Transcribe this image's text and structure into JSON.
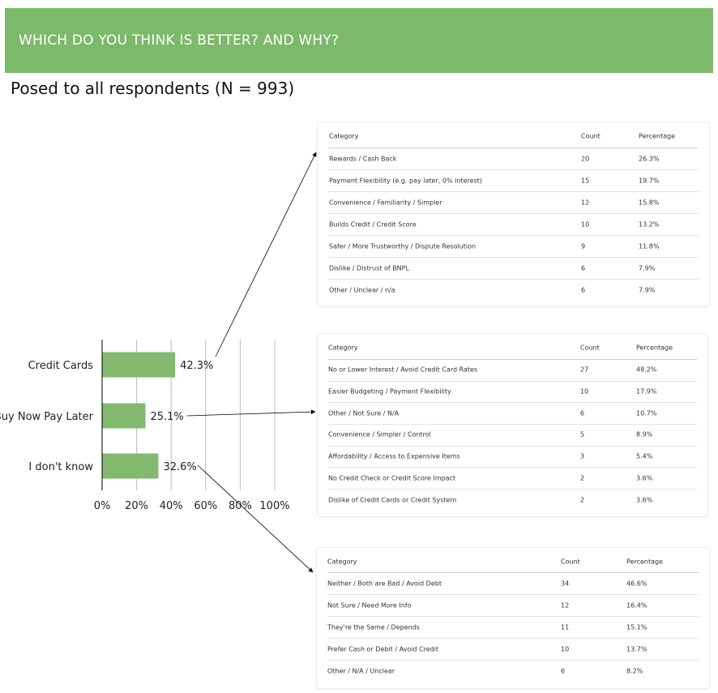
{
  "banner": {
    "title": "WHICH DO YOU THINK IS BETTER? AND WHY?"
  },
  "subtitle": "Posed to all respondents (N = 993)",
  "colors": {
    "banner": "#7db96a",
    "bar": "#82b96e",
    "gridline": "#bbbbbb"
  },
  "chart_data": {
    "type": "bar",
    "orientation": "horizontal",
    "categories": [
      "Credit Cards",
      "Buy Now Pay Later",
      "I don't know"
    ],
    "values": [
      42.3,
      25.1,
      32.6
    ],
    "value_labels": [
      "42.3%",
      "25.1%",
      "32.6%"
    ],
    "x_ticks": [
      "0%",
      "20%",
      "40%",
      "60%",
      "80%",
      "100%"
    ],
    "xlim": [
      0,
      100
    ],
    "grid": true
  },
  "tables": [
    {
      "headers": [
        "Category",
        "Count",
        "Percentage"
      ],
      "rows": [
        [
          "Rewards / Cash Back",
          "20",
          "26.3%"
        ],
        [
          "Payment Flexibility (e.g. pay later, 0% interest)",
          "15",
          "19.7%"
        ],
        [
          "Convenience / Familiarity / Simpler",
          "12",
          "15.8%"
        ],
        [
          "Builds Credit / Credit Score",
          "10",
          "13.2%"
        ],
        [
          "Safer / More Trustworthy / Dispute Resolution",
          "9",
          "11.8%"
        ],
        [
          "Dislike / Distrust of BNPL",
          "6",
          "7.9%"
        ],
        [
          "Other / Unclear / n/a",
          "6",
          "7.9%"
        ]
      ]
    },
    {
      "headers": [
        "Category",
        "Count",
        "Percentage"
      ],
      "rows": [
        [
          "No or Lower Interest / Avoid Credit Card Rates",
          "27",
          "48.2%"
        ],
        [
          "Easier Budgeting / Payment Flexibility",
          "10",
          "17.9%"
        ],
        [
          "Other / Not Sure / N/A",
          "6",
          "10.7%"
        ],
        [
          "Convenience / Simpler / Control",
          "5",
          "8.9%"
        ],
        [
          "Affordability / Access to Expensive Items",
          "3",
          "5.4%"
        ],
        [
          "No Credit Check or Credit Score Impact",
          "2",
          "3.6%"
        ],
        [
          "Dislike of Credit Cards or Credit System",
          "2",
          "3.6%"
        ]
      ]
    },
    {
      "headers": [
        "Category",
        "Count",
        "Percentage"
      ],
      "rows": [
        [
          "Neither / Both are Bad / Avoid Debt",
          "34",
          "46.6%"
        ],
        [
          "Not Sure / Need More Info",
          "12",
          "16.4%"
        ],
        [
          "They're the Same / Depends",
          "11",
          "15.1%"
        ],
        [
          "Prefer Cash or Debit / Avoid Credit",
          "10",
          "13.7%"
        ],
        [
          "Other / N/A / Unclear",
          "6",
          "8.2%"
        ]
      ]
    }
  ]
}
